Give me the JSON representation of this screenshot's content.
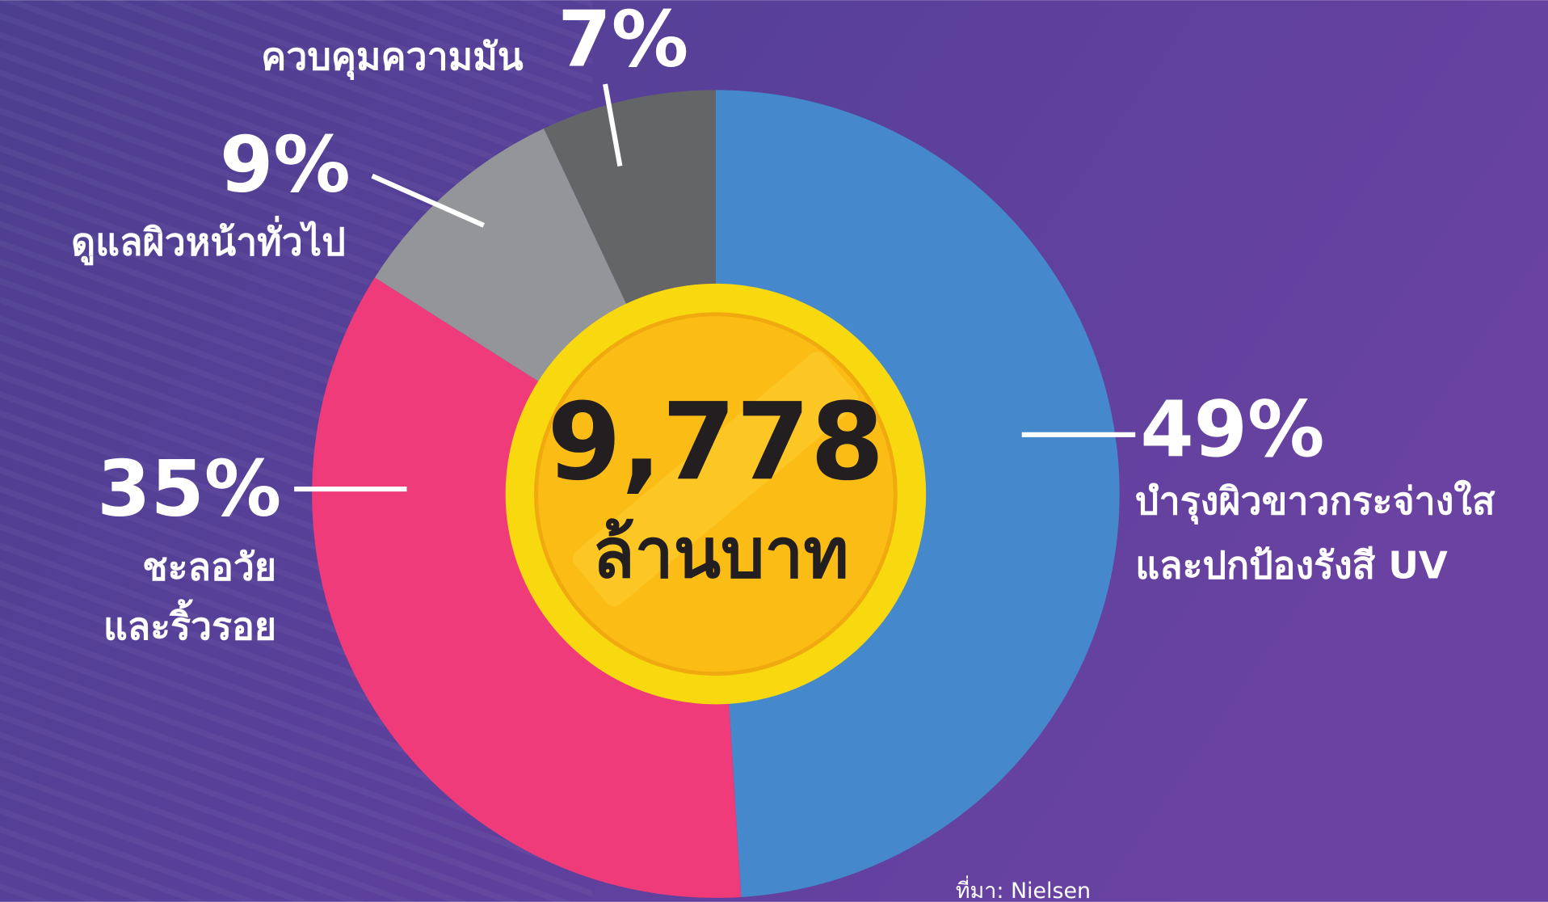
{
  "chart_data": {
    "type": "pie",
    "categories": [
      [
        "บำรุงผิวขาวกระจ่างใส",
        "และปกป้องรังสี UV"
      ],
      [
        "ชะลอวัย",
        "และริ้วรอย"
      ],
      [
        "ดูแลผิวหน้าทั่วไป"
      ],
      [
        "ควบคุมความมัน"
      ]
    ],
    "values": [
      49,
      35,
      9,
      7
    ],
    "value_labels": [
      "49%",
      "35%",
      "9%",
      "7%"
    ],
    "colors": [
      "#4588cb",
      "#ef3b7a",
      "#939598",
      "#646567"
    ],
    "center_label": "9,778",
    "center_sublabel": "ล้านบาท",
    "source": "ที่มา: Nielsen"
  }
}
